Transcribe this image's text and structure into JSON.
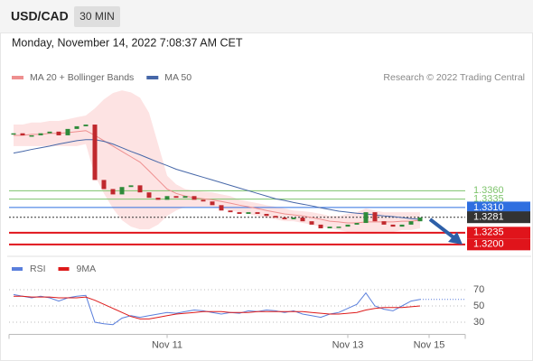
{
  "header": {
    "symbol": "USD/CAD",
    "interval": "30 MIN",
    "timestamp": "Monday, November 14, 2022 7:08:37 AM CET",
    "copyright": "Research © 2022 Trading Central"
  },
  "chart_data": [
    {
      "type": "candlestick",
      "xlim": [
        -0.5,
        50
      ],
      "ylim": [
        1.317,
        1.367
      ],
      "up_color": "#2e8b3a",
      "down_color": "#c0282d",
      "closes": [
        1.3531,
        1.3525,
        1.3525,
        1.3531,
        1.3536,
        1.3525,
        1.3544,
        1.3552,
        1.3557,
        1.3392,
        1.3365,
        1.3349,
        1.3371,
        1.3376,
        1.3355,
        1.3339,
        1.3333,
        1.3344,
        1.3339,
        1.3344,
        1.3333,
        1.3328,
        1.3317,
        1.3301,
        1.3296,
        1.3291,
        1.3296,
        1.3291,
        1.3285,
        1.328,
        1.3275,
        1.328,
        1.3269,
        1.3259,
        1.3248,
        1.3253,
        1.3253,
        1.3259,
        1.3264,
        1.3296,
        1.3269,
        1.3259,
        1.3253,
        1.3259,
        1.3269,
        1.328
      ],
      "series": [
        {
          "name": "MA 20 + Bollinger Bands",
          "color": "#ee8f8f",
          "band_color": "#fde3e3",
          "values": [
            1.3525,
            1.3525,
            1.3528,
            1.3528,
            1.3531,
            1.3531,
            1.3533,
            1.3536,
            1.3539,
            1.3525,
            1.3509,
            1.3493,
            1.3477,
            1.3461,
            1.3445,
            1.3419,
            1.3392,
            1.3365,
            1.3352,
            1.3344,
            1.3339,
            1.3336,
            1.3333,
            1.3328,
            1.3323,
            1.3317,
            1.3312,
            1.3307,
            1.3301,
            1.3296,
            1.3291,
            1.3288,
            1.3285,
            1.328,
            1.3275,
            1.3269,
            1.3267,
            1.3264,
            1.3264,
            1.3267,
            1.3267,
            1.3267,
            1.3267,
            1.3269,
            1.3269,
            1.3272
          ],
          "upper": [
            1.3557,
            1.3557,
            1.3563,
            1.3563,
            1.3568,
            1.3568,
            1.3573,
            1.3579,
            1.3584,
            1.3605,
            1.3632,
            1.3651,
            1.3659,
            1.3653,
            1.3637,
            1.3592,
            1.3499,
            1.3405,
            1.3379,
            1.3365,
            1.336,
            1.3357,
            1.3355,
            1.3349,
            1.3344,
            1.3333,
            1.3328,
            1.3323,
            1.3317,
            1.3312,
            1.3307,
            1.3301,
            1.3299,
            1.3296,
            1.3291,
            1.3285,
            1.3285,
            1.3291,
            1.3296,
            1.3307,
            1.3301,
            1.3296,
            1.3296,
            1.3296,
            1.3296,
            1.3296
          ],
          "lower": [
            1.3493,
            1.3493,
            1.3493,
            1.3493,
            1.3493,
            1.3493,
            1.3493,
            1.3493,
            1.3499,
            1.3405,
            1.3352,
            1.3307,
            1.3272,
            1.3253,
            1.3245,
            1.3245,
            1.3259,
            1.3285,
            1.3301,
            1.3312,
            1.3312,
            1.3312,
            1.3312,
            1.3307,
            1.3301,
            1.3296,
            1.3291,
            1.3285,
            1.328,
            1.3275,
            1.3269,
            1.3269,
            1.3264,
            1.3259,
            1.3253,
            1.3248,
            1.3243,
            1.3237,
            1.3232,
            1.3232,
            1.3232,
            1.3237,
            1.3237,
            1.3243,
            1.3243,
            1.3248
          ]
        },
        {
          "name": "MA 50",
          "color": "#4667a8",
          "values": [
            1.3472,
            1.3477,
            1.3483,
            1.3488,
            1.3493,
            1.3499,
            1.3504,
            1.3509,
            1.3512,
            1.3512,
            1.3507,
            1.3499,
            1.3488,
            1.3477,
            1.3467,
            1.3456,
            1.3445,
            1.3435,
            1.3424,
            1.3416,
            1.3408,
            1.34,
            1.3392,
            1.3384,
            1.3376,
            1.3368,
            1.336,
            1.3352,
            1.3344,
            1.3336,
            1.3331,
            1.3325,
            1.332,
            1.3315,
            1.3309,
            1.3304,
            1.3299,
            1.3296,
            1.3293,
            1.3291,
            1.3288,
            1.3285,
            1.3283,
            1.328,
            1.3277,
            1.3275
          ]
        }
      ],
      "levels": [
        {
          "value": 1.336,
          "label": "1.3360",
          "color": "#7dc36b",
          "boxed": false,
          "width": 1
        },
        {
          "value": 1.3335,
          "label": "1.3335",
          "color": "#7dc36b",
          "boxed": false,
          "width": 1
        },
        {
          "value": 1.331,
          "label": "1.3310",
          "color": "#2f6fe0",
          "boxed": true,
          "width": 1
        },
        {
          "value": 1.3281,
          "label": "1.3281",
          "color": "#333333",
          "boxed": true,
          "width": 1,
          "dotted": true
        },
        {
          "value": 1.3235,
          "label": "1.3235",
          "color": "#e0141b",
          "boxed": true,
          "width": 2
        },
        {
          "value": 1.32,
          "label": "1.3200",
          "color": "#e0141b",
          "boxed": true,
          "width": 2
        }
      ]
    },
    {
      "type": "line",
      "xlim": [
        -0.5,
        50
      ],
      "ylim": [
        15,
        88
      ],
      "yticks": [
        30,
        50,
        70
      ],
      "xticks": [
        {
          "value": 17,
          "label": "Nov 11"
        },
        {
          "value": 37,
          "label": "Nov 13"
        },
        {
          "value": 46,
          "label": "Nov 15"
        }
      ],
      "series": [
        {
          "name": "RSI",
          "color": "#5a7fdc",
          "values": [
            64,
            62,
            60,
            62,
            60,
            56,
            60,
            62,
            63,
            30,
            28,
            27,
            35,
            38,
            36,
            38,
            40,
            42,
            41,
            43,
            45,
            44,
            42,
            40,
            42,
            41,
            44,
            43,
            45,
            44,
            42,
            44,
            40,
            38,
            36,
            40,
            42,
            47,
            52,
            66,
            50,
            46,
            44,
            50,
            56,
            58
          ]
        },
        {
          "name": "9MA",
          "color": "#dd1a1a",
          "values": [
            62,
            62,
            61,
            61,
            61,
            60,
            60,
            60,
            61,
            57,
            52,
            47,
            42,
            37,
            34,
            34,
            36,
            38,
            40,
            41,
            42,
            43,
            43,
            43,
            42,
            42,
            42,
            43,
            43,
            43,
            43,
            43,
            43,
            42,
            41,
            40,
            40,
            41,
            42,
            45,
            47,
            48,
            48,
            48,
            49,
            50
          ]
        }
      ]
    }
  ]
}
